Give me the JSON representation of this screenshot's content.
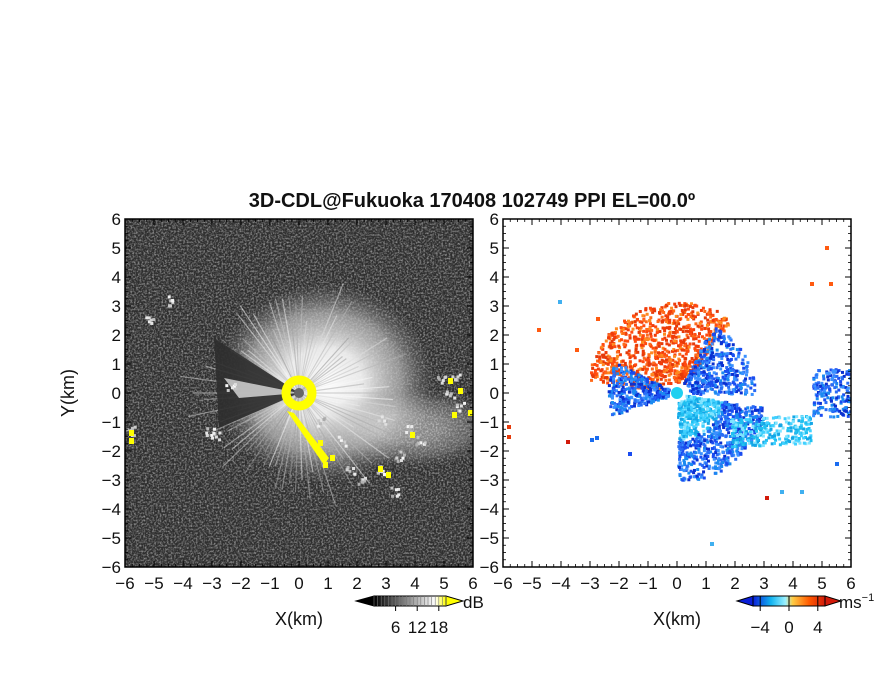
{
  "chart_data": [
    {
      "type": "heatmap",
      "name": "reflectivity-panel",
      "title": "3D-CDL@Fukuoka 170408 102749 PPI EL=00.0º",
      "xlabel": "X(km)",
      "ylabel": "Y(km)",
      "xlim": [
        -6,
        6
      ],
      "ylim": [
        -6,
        6
      ],
      "x_ticks": [
        "−6",
        "−5",
        "−4",
        "−3",
        "−2",
        "−1",
        "0",
        "1",
        "2",
        "3",
        "4",
        "5",
        "6"
      ],
      "y_ticks": [
        "6",
        "5",
        "4",
        "3",
        "2",
        "1",
        "0",
        "−1",
        "−2",
        "−3",
        "−4",
        "−5",
        "−6"
      ],
      "colorbar": {
        "unit": "dB",
        "tick_labels": [
          "6",
          "12",
          "18"
        ],
        "ticks": [
          6,
          12,
          18
        ],
        "range": [
          0,
          20
        ],
        "colors": [
          "#000000",
          "#ffffff",
          "#ffff00"
        ]
      },
      "background_color": "#2e2e2e",
      "saturation_color": "#ffff00"
    },
    {
      "type": "heatmap",
      "name": "doppler-velocity-panel",
      "xlabel": "X(km)",
      "ylabel": "",
      "xlim": [
        -6,
        6
      ],
      "ylim": [
        -6,
        6
      ],
      "x_ticks": [
        "−6",
        "−5",
        "−4",
        "−3",
        "−2",
        "−1",
        "0",
        "1",
        "2",
        "3",
        "4",
        "5",
        "6"
      ],
      "y_ticks": [
        "6",
        "5",
        "4",
        "3",
        "2",
        "1",
        "0",
        "−1",
        "−2",
        "−3",
        "−4",
        "−5",
        "−6"
      ],
      "colorbar": {
        "unit": "ms",
        "unit_exponent": "−1",
        "tick_labels": [
          "−4",
          "0",
          "4"
        ],
        "ticks": [
          -4,
          0,
          4
        ],
        "range": [
          -5,
          5
        ],
        "colors": [
          "#0a1ed8",
          "#12b4f0",
          "#9af0ff",
          "#ffcc44",
          "#ff5a00",
          "#d21a0a"
        ]
      },
      "approach_color": "#1a4cf0",
      "recede_color": "#ff4a10"
    }
  ]
}
